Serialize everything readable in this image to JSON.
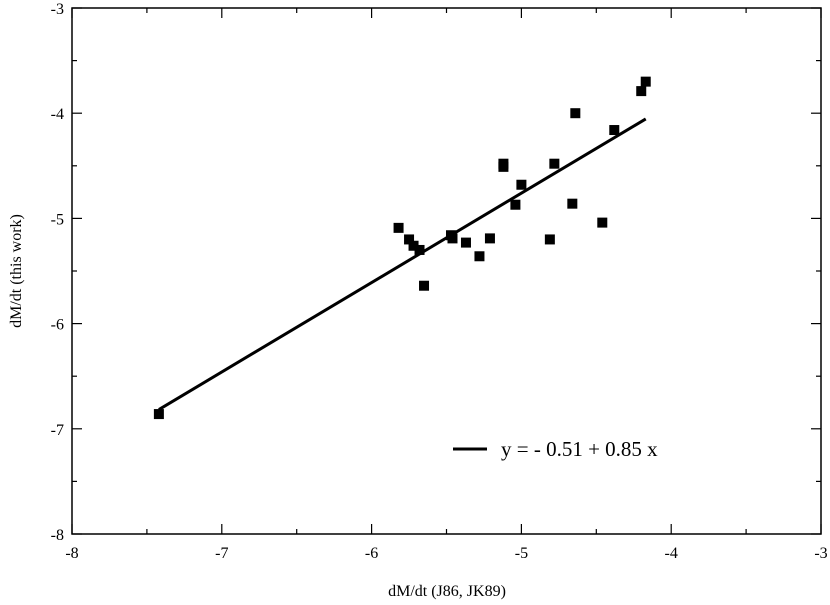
{
  "chart_data": {
    "type": "scatter",
    "title": "",
    "xlabel": "dM/dt  (J86, JK89)",
    "ylabel": "dM/dt  (this work)",
    "xlim": [
      -8,
      -3
    ],
    "ylim": [
      -8,
      -3
    ],
    "xticks": [
      -8,
      -7,
      -6,
      -5,
      -4,
      -3
    ],
    "yticks": [
      -8,
      -7,
      -6,
      -5,
      -4,
      -3
    ],
    "grid": false,
    "legend_position": "bottom-right",
    "series": [
      {
        "marker": "square",
        "color": "#000000",
        "points": [
          [
            -7.42,
            -6.86
          ],
          [
            -5.82,
            -5.09
          ],
          [
            -5.75,
            -5.2
          ],
          [
            -5.72,
            -5.26
          ],
          [
            -5.68,
            -5.3
          ],
          [
            -5.65,
            -5.64
          ],
          [
            -5.47,
            -5.16
          ],
          [
            -5.46,
            -5.19
          ],
          [
            -5.37,
            -5.23
          ],
          [
            -5.28,
            -5.36
          ],
          [
            -5.21,
            -5.19
          ],
          [
            -5.12,
            -4.48
          ],
          [
            -5.12,
            -4.51
          ],
          [
            -5.04,
            -4.87
          ],
          [
            -5.0,
            -4.68
          ],
          [
            -4.81,
            -5.2
          ],
          [
            -4.78,
            -4.48
          ],
          [
            -4.66,
            -4.86
          ],
          [
            -4.64,
            -4.0
          ],
          [
            -4.46,
            -5.04
          ],
          [
            -4.38,
            -4.16
          ],
          [
            -4.2,
            -3.79
          ],
          [
            -4.17,
            -3.7
          ]
        ]
      }
    ],
    "fit_line": {
      "label": "y = - 0.51 + 0.85 x",
      "intercept": -0.51,
      "slope": 0.85,
      "x_range": [
        -7.42,
        -4.17
      ],
      "color": "#000000"
    }
  }
}
